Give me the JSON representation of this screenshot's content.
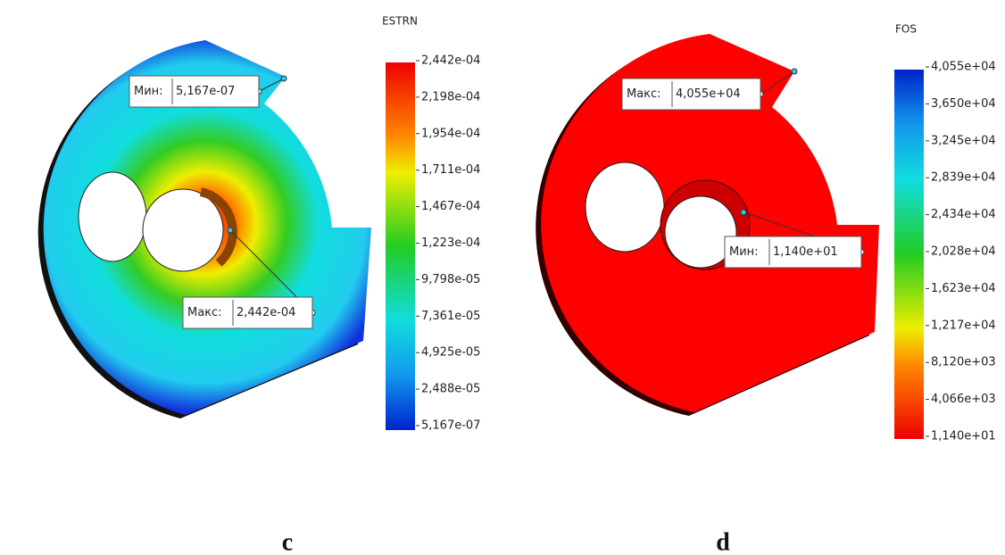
{
  "panels": [
    {
      "label": "c",
      "legend": {
        "title": "ESTRN",
        "ticks": [
          "2,442e-04",
          "2,198e-04",
          "1,954e-04",
          "1,711e-04",
          "1,467e-04",
          "1,223e-04",
          "9,798e-05",
          "7,361e-05",
          "4,925e-05",
          "2,488e-05",
          "5,167e-07"
        ]
      },
      "callouts": [
        {
          "key": "Мин:",
          "value": "5,167e-07"
        },
        {
          "key": "Макс:",
          "value": "2,442e-04"
        }
      ]
    },
    {
      "label": "d",
      "legend": {
        "title": "FOS",
        "ticks": [
          "4,055e+04",
          "3,650e+04",
          "3,245e+04",
          "2,839e+04",
          "2,434e+04",
          "2,028e+04",
          "1,623e+04",
          "1,217e+04",
          "8,120e+03",
          "4,066e+03",
          "1,140e+01"
        ]
      },
      "callouts": [
        {
          "key": "Макс:",
          "value": "4,055e+04"
        },
        {
          "key": "Мин:",
          "value": "1,140e+01"
        }
      ]
    }
  ]
}
